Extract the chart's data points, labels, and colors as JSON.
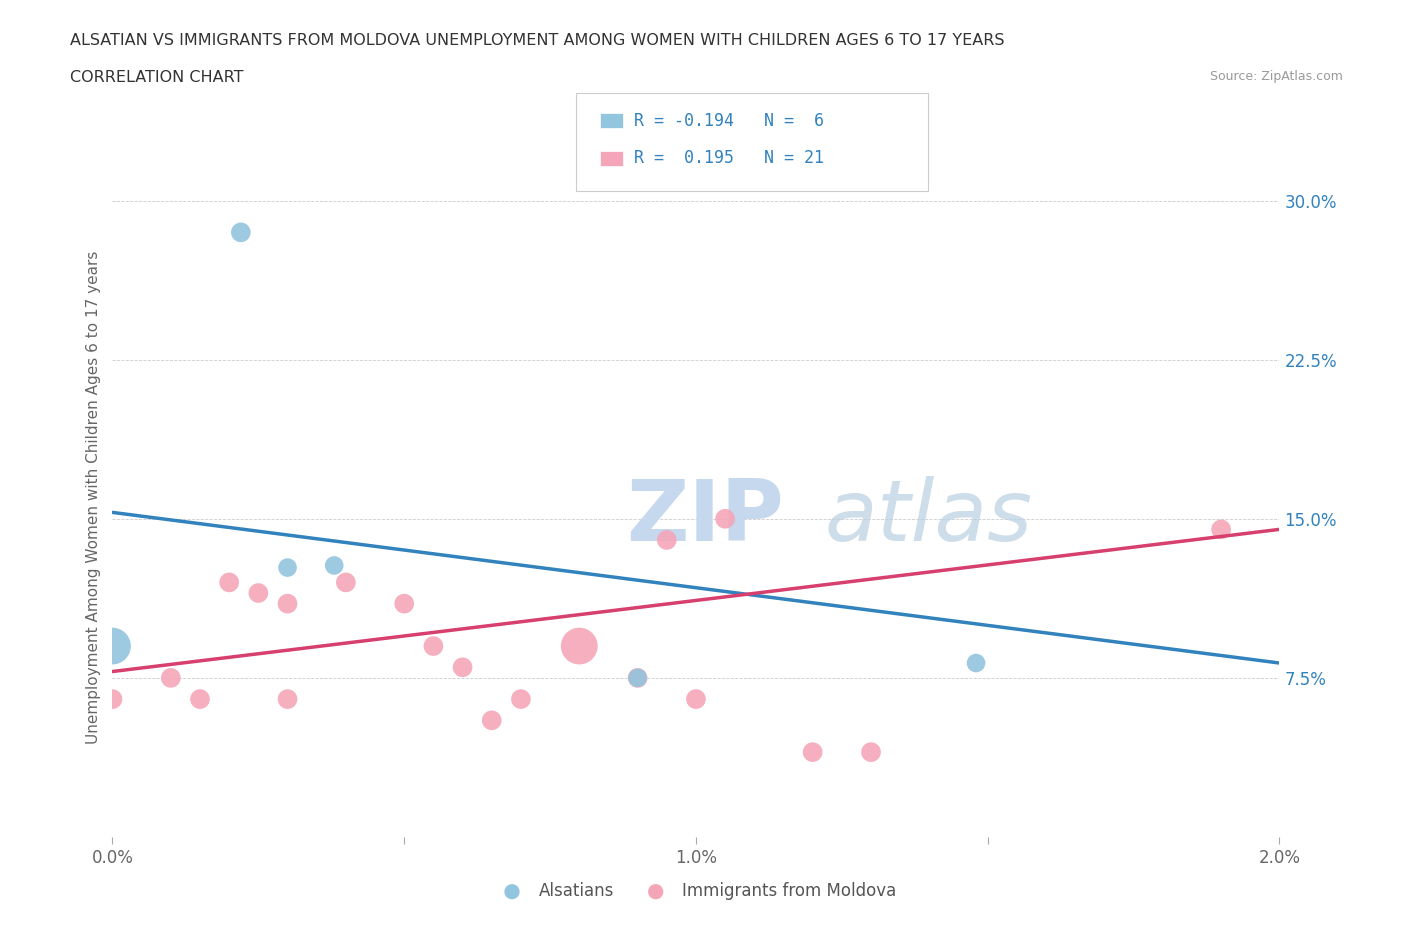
{
  "title": "ALSATIAN VS IMMIGRANTS FROM MOLDOVA UNEMPLOYMENT AMONG WOMEN WITH CHILDREN AGES 6 TO 17 YEARS",
  "subtitle": "CORRELATION CHART",
  "source": "Source: ZipAtlas.com",
  "ylabel": "Unemployment Among Women with Children Ages 6 to 17 years",
  "xmin": 0.0,
  "xmax": 0.02,
  "ymin": 0.0,
  "ymax": 0.32,
  "yticks": [
    0.075,
    0.15,
    0.225,
    0.3
  ],
  "ytick_labels": [
    "7.5%",
    "15.0%",
    "22.5%",
    "30.0%"
  ],
  "xticks": [
    0.0,
    0.005,
    0.01,
    0.015,
    0.02
  ],
  "xtick_labels": [
    "0.0%",
    "",
    "1.0%",
    "",
    "2.0%"
  ],
  "blue_color": "#92c5de",
  "pink_color": "#f4a6b8",
  "blue_line_color": "#3182bd",
  "pink_line_color": "#d63f6e",
  "legend_r_blue": "R = -0.194",
  "legend_n_blue": "N =  6",
  "legend_r_pink": "R =  0.195",
  "legend_n_pink": "N = 21",
  "watermark_zip": "ZIP",
  "watermark_atlas": "atlas",
  "alsatian_x": [
    0.0,
    0.0022,
    0.003,
    0.0038,
    0.009,
    0.0148
  ],
  "alsatian_y": [
    0.09,
    0.285,
    0.127,
    0.128,
    0.075,
    0.082
  ],
  "alsatian_size": [
    700,
    200,
    180,
    180,
    180,
    180
  ],
  "moldova_x": [
    0.0,
    0.001,
    0.0015,
    0.002,
    0.0025,
    0.003,
    0.003,
    0.004,
    0.005,
    0.0055,
    0.006,
    0.0065,
    0.007,
    0.008,
    0.009,
    0.0095,
    0.01,
    0.0105,
    0.012,
    0.013,
    0.019
  ],
  "moldova_y": [
    0.065,
    0.075,
    0.065,
    0.12,
    0.115,
    0.11,
    0.065,
    0.12,
    0.11,
    0.09,
    0.08,
    0.055,
    0.065,
    0.09,
    0.075,
    0.14,
    0.065,
    0.15,
    0.04,
    0.04,
    0.145
  ],
  "moldova_size": [
    200,
    200,
    200,
    200,
    200,
    200,
    200,
    200,
    200,
    200,
    200,
    200,
    200,
    700,
    200,
    200,
    200,
    200,
    200,
    200,
    200
  ],
  "blue_trendline_x": [
    0.0,
    0.02
  ],
  "blue_trendline_y": [
    0.153,
    0.082
  ],
  "pink_trendline_x": [
    0.0,
    0.02
  ],
  "pink_trendline_y": [
    0.078,
    0.145
  ]
}
